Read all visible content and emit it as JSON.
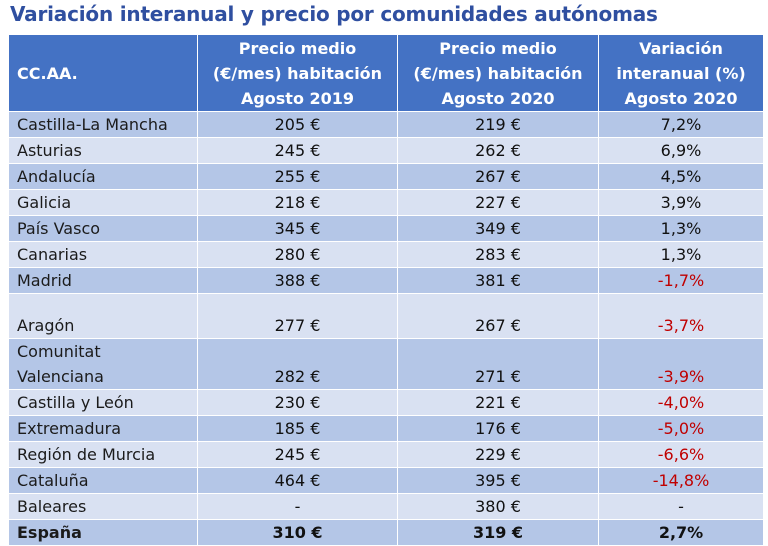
{
  "title": "Variación interanual y precio por comunidades autónomas",
  "headers": {
    "region": "CC.AA.",
    "price2019": [
      "Precio medio",
      "(€/mes) habitación",
      "Agosto 2019"
    ],
    "price2020": [
      "Precio medio",
      "(€/mes) habitación",
      "Agosto 2020"
    ],
    "variation": [
      "Variación",
      "interanual (%)",
      "Agosto 2020"
    ]
  },
  "rows": [
    {
      "region": "Castilla-La Mancha",
      "p2019": "205 €",
      "p2020": "219 €",
      "var": "7,2%"
    },
    {
      "region": "Asturias",
      "p2019": "245 €",
      "p2020": "262 €",
      "var": "6,9%"
    },
    {
      "region": "Andalucía",
      "p2019": "255 €",
      "p2020": "267 €",
      "var": "4,5%"
    },
    {
      "region": "Galicia",
      "p2019": "218 €",
      "p2020": "227 €",
      "var": "3,9%"
    },
    {
      "region": "País Vasco",
      "p2019": "345 €",
      "p2020": "349 €",
      "var": "1,3%"
    },
    {
      "region": "Canarias",
      "p2019": "280 €",
      "p2020": "283 €",
      "var": "1,3%"
    },
    {
      "region": "Madrid",
      "p2019": "388 €",
      "p2020": "381 €",
      "var": "-1,7%"
    },
    {
      "region": "Aragón",
      "p2019": "277 €",
      "p2020": "267 €",
      "var": "-3,7%"
    },
    {
      "region_lines": [
        "Comunitat",
        "Valenciana"
      ],
      "p2019": "282 €",
      "p2020": "271 €",
      "var": "-3,9%"
    },
    {
      "region": "Castilla y León",
      "p2019": "230 €",
      "p2020": "221 €",
      "var": "-4,0%"
    },
    {
      "region": "Extremadura",
      "p2019": "185 €",
      "p2020": "176 €",
      "var": "-5,0%"
    },
    {
      "region": "Región de Murcia",
      "p2019": "245 €",
      "p2020": "229 €",
      "var": "-6,6%"
    },
    {
      "region": "Cataluña",
      "p2019": "464 €",
      "p2020": "395 €",
      "var": "-14,8%"
    },
    {
      "region": "Baleares",
      "p2019": "-",
      "p2020": "380 €",
      "var": "-"
    }
  ],
  "total": {
    "region": "España",
    "p2019": "310 €",
    "p2020": "319 €",
    "var": "2,7%"
  },
  "colors": {
    "header": "#4472c4",
    "band_dark": "#b4c6e7",
    "band_light": "#d9e1f2",
    "negative": "#c00000",
    "title": "#2f4fa0"
  }
}
